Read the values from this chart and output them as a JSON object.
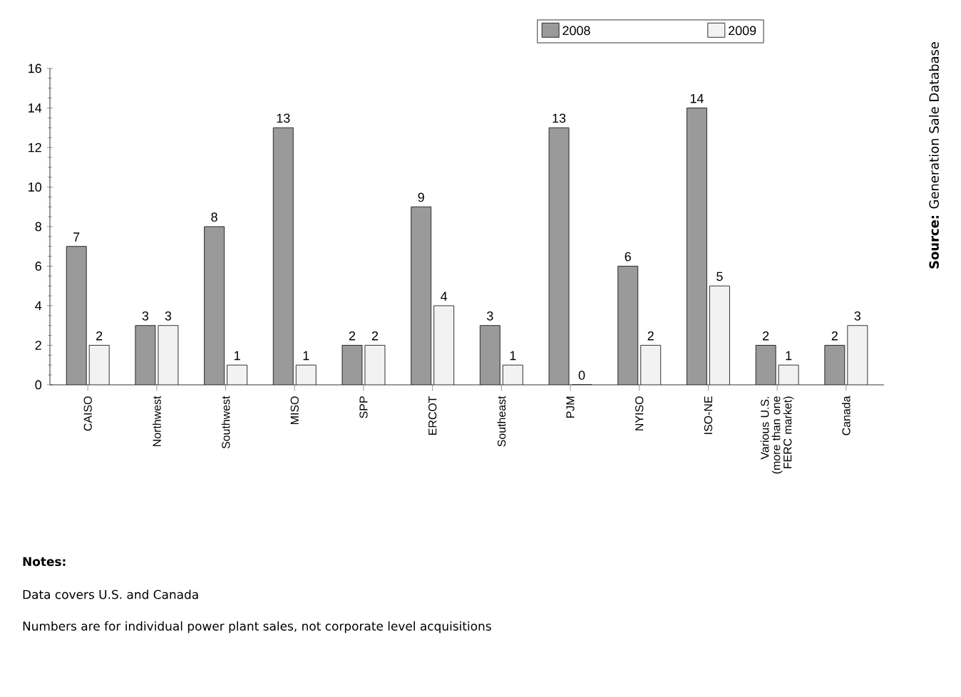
{
  "chart_data": {
    "type": "bar",
    "categories": [
      "CAISO",
      "Northwest",
      "Southwest",
      "MISO",
      "SPP",
      "ERCOT",
      "Southeast",
      "PJM",
      "NYISO",
      "ISO-NE",
      "Various U.S. (more than one FERC market)",
      "Canada"
    ],
    "series": [
      {
        "name": "2008",
        "color": "#9a9a9a",
        "values": [
          7,
          3,
          8,
          13,
          2,
          9,
          3,
          13,
          6,
          14,
          2,
          2
        ]
      },
      {
        "name": "2009",
        "color": "#f2f2f2",
        "values": [
          2,
          3,
          1,
          1,
          2,
          4,
          1,
          0,
          2,
          5,
          1,
          3
        ]
      }
    ],
    "ylim": [
      0,
      16
    ],
    "yticks": [
      0,
      2,
      4,
      6,
      8,
      10,
      12,
      14,
      16
    ],
    "data_labels": true,
    "legend": "top",
    "grid": false,
    "annotations": [
      "Notes:",
      "Data covers U.S. and Canada",
      "Numbers are for individual power plant sales, not corporate level acquisitions",
      "**Source:** Generation Sale Database"
    ]
  }
}
